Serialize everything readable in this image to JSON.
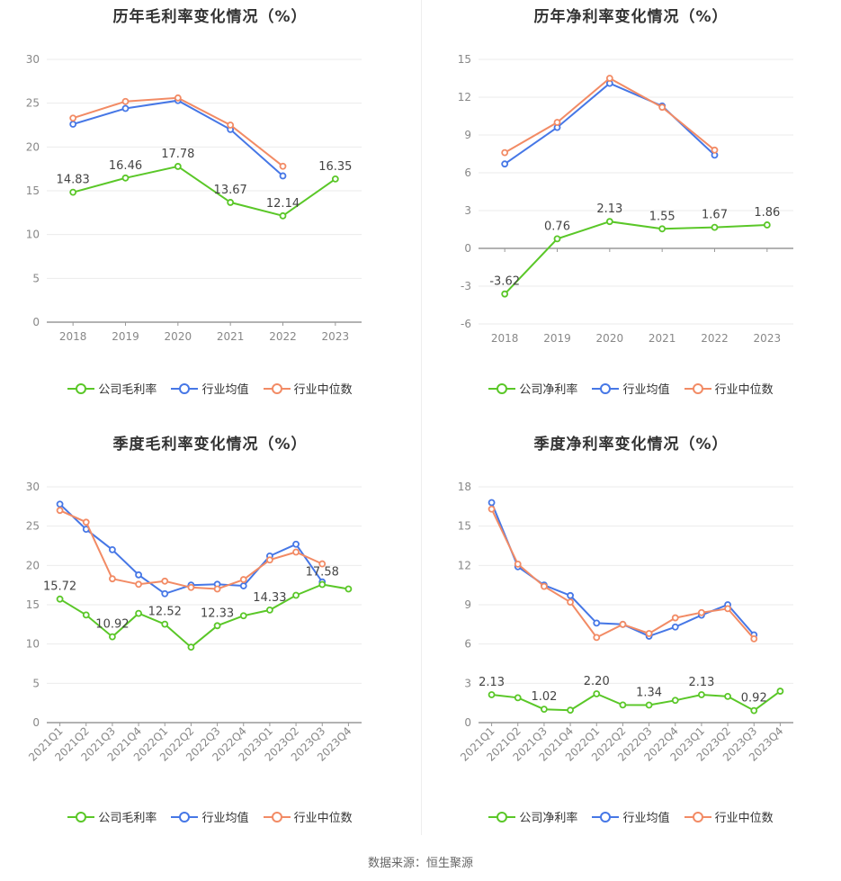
{
  "source": "数据来源：恒生聚源",
  "legend_colors": {
    "company": "#5ac728",
    "avg": "#4677e6",
    "median": "#f28b65"
  },
  "chart_data": [
    {
      "type": "line",
      "title": "历年毛利率变化情况（%）",
      "categories": [
        "2018",
        "2019",
        "2020",
        "2021",
        "2022",
        "2023"
      ],
      "ylim": [
        0,
        30
      ],
      "yticks": [
        0,
        5,
        10,
        15,
        20,
        25,
        30
      ],
      "series": [
        {
          "name": "公司毛利率",
          "values": [
            14.83,
            16.46,
            17.78,
            13.67,
            12.14,
            16.35
          ],
          "labels": [
            "14.83",
            "16.46",
            "17.78",
            "13.67",
            "12.14",
            "16.35"
          ]
        },
        {
          "name": "行业均值",
          "values": [
            22.6,
            24.4,
            25.3,
            22.0,
            16.7,
            null
          ],
          "labels": []
        },
        {
          "name": "行业中位数",
          "values": [
            23.3,
            25.2,
            25.6,
            22.5,
            17.8,
            null
          ],
          "labels": []
        }
      ]
    },
    {
      "type": "line",
      "title": "历年净利率变化情况（%）",
      "categories": [
        "2018",
        "2019",
        "2020",
        "2021",
        "2022",
        "2023"
      ],
      "ylim": [
        -6,
        15
      ],
      "yticks": [
        -6,
        -3,
        0,
        3,
        6,
        9,
        12,
        15
      ],
      "series": [
        {
          "name": "公司净利率",
          "values": [
            -3.62,
            0.76,
            2.13,
            1.55,
            1.67,
            1.86
          ],
          "labels": [
            "-3.62",
            "0.76",
            "2.13",
            "1.55",
            "1.67",
            "1.86"
          ]
        },
        {
          "name": "行业均值",
          "values": [
            6.7,
            9.6,
            13.1,
            11.3,
            7.4,
            null
          ],
          "labels": []
        },
        {
          "name": "行业中位数",
          "values": [
            7.6,
            10.0,
            13.5,
            11.2,
            7.8,
            null
          ],
          "labels": []
        }
      ]
    },
    {
      "type": "line",
      "title": "季度毛利率变化情况（%）",
      "categories": [
        "2021Q1",
        "2021Q2",
        "2021Q3",
        "2021Q4",
        "2022Q1",
        "2022Q2",
        "2022Q3",
        "2022Q4",
        "2023Q1",
        "2023Q2",
        "2023Q3",
        "2023Q4"
      ],
      "ylim": [
        0,
        30
      ],
      "yticks": [
        0,
        5,
        10,
        15,
        20,
        25,
        30
      ],
      "series": [
        {
          "name": "公司毛利率",
          "values": [
            15.72,
            13.7,
            10.92,
            13.9,
            12.52,
            9.6,
            12.33,
            13.6,
            14.33,
            16.2,
            17.58,
            17.0
          ],
          "labels": [
            "15.72",
            "",
            "10.92",
            "",
            "12.52",
            "",
            "12.33",
            "",
            "14.33",
            "",
            "17.58",
            ""
          ]
        },
        {
          "name": "行业均值",
          "values": [
            27.8,
            24.6,
            22.0,
            18.8,
            16.4,
            17.5,
            17.6,
            17.4,
            21.2,
            22.7,
            17.9,
            null
          ],
          "labels": []
        },
        {
          "name": "行业中位数",
          "values": [
            27.0,
            25.5,
            18.3,
            17.6,
            18.0,
            17.2,
            17.0,
            18.2,
            20.7,
            21.7,
            20.2,
            null
          ],
          "labels": []
        }
      ]
    },
    {
      "type": "line",
      "title": "季度净利率变化情况（%）",
      "categories": [
        "2021Q1",
        "2021Q2",
        "2021Q3",
        "2021Q4",
        "2022Q1",
        "2022Q2",
        "2022Q3",
        "2022Q4",
        "2023Q1",
        "2023Q2",
        "2023Q3",
        "2023Q4"
      ],
      "ylim": [
        0,
        18
      ],
      "yticks": [
        0,
        3,
        6,
        9,
        12,
        15,
        18
      ],
      "series": [
        {
          "name": "公司净利率",
          "values": [
            2.13,
            1.9,
            1.02,
            0.95,
            2.2,
            1.35,
            1.34,
            1.7,
            2.13,
            2.0,
            0.92,
            2.4
          ],
          "labels": [
            "2.13",
            "",
            "1.02",
            "",
            "2.20",
            "",
            "1.34",
            "",
            "2.13",
            "",
            "0.92",
            ""
          ]
        },
        {
          "name": "行业均值",
          "values": [
            16.8,
            11.9,
            10.5,
            9.7,
            7.6,
            7.5,
            6.6,
            7.3,
            8.2,
            9.0,
            6.7,
            null
          ],
          "labels": []
        },
        {
          "name": "行业中位数",
          "values": [
            16.3,
            12.1,
            10.4,
            9.2,
            6.5,
            7.5,
            6.8,
            8.0,
            8.4,
            8.7,
            6.4,
            null
          ],
          "labels": []
        }
      ]
    }
  ]
}
